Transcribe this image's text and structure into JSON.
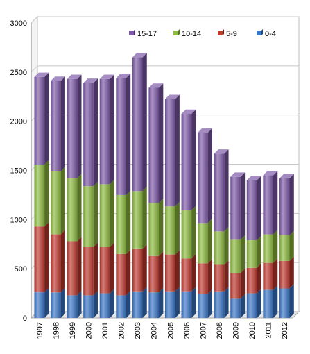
{
  "chart_data": {
    "type": "bar",
    "stacked": true,
    "three_d": true,
    "categories": [
      "1997",
      "1998",
      "1999",
      "2000",
      "2001",
      "2002",
      "2003",
      "2004",
      "2005",
      "2006",
      "2007",
      "2008",
      "2009",
      "2010",
      "2011",
      "2012"
    ],
    "series": [
      {
        "name": "0-4",
        "color": "#3A76C8",
        "values": [
          260,
          260,
          230,
          230,
          250,
          230,
          270,
          260,
          270,
          270,
          245,
          270,
          195,
          250,
          285,
          300
        ]
      },
      {
        "name": "5-9",
        "color": "#C0392F",
        "values": [
          670,
          590,
          550,
          490,
          470,
          420,
          430,
          370,
          375,
          335,
          310,
          270,
          260,
          260,
          275,
          280
        ]
      },
      {
        "name": "10-14",
        "color": "#8DBB3E",
        "values": [
          630,
          640,
          640,
          620,
          640,
          600,
          590,
          540,
          490,
          490,
          410,
          340,
          340,
          280,
          290,
          260
        ]
      },
      {
        "name": "15-17",
        "color": "#7D59A8",
        "values": [
          890,
          920,
          1010,
          1050,
          1070,
          1190,
          1360,
          1170,
          1090,
          980,
          920,
          790,
          640,
          610,
          600,
          580
        ]
      }
    ],
    "ylim": [
      0,
      3000
    ],
    "yticks": [
      0,
      500,
      1000,
      1500,
      2000,
      2500,
      3000
    ],
    "legend_order": [
      "15-17",
      "10-14",
      "5-9",
      "0-4"
    ],
    "legend_position": "top-right",
    "grid": true
  }
}
